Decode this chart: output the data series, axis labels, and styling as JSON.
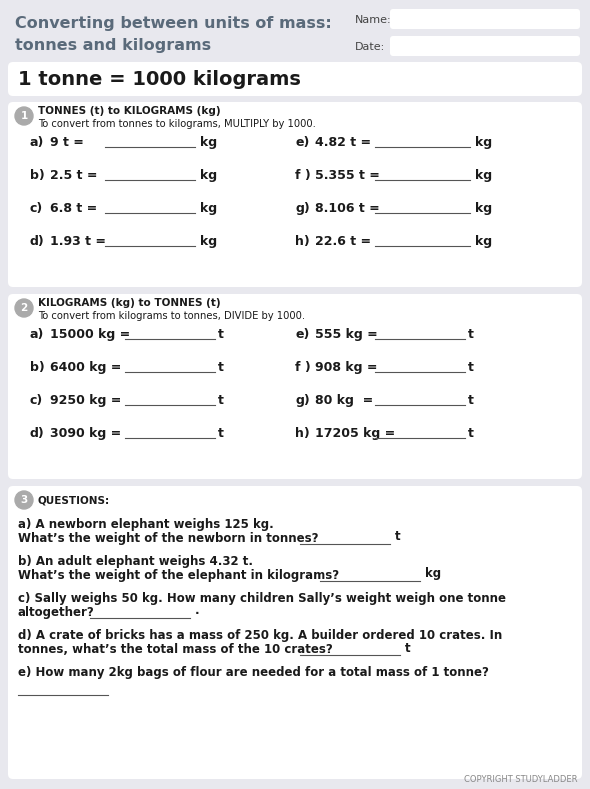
{
  "title_line1": "Converting between units of mass:",
  "title_line2": "tonnes and kilograms",
  "bg_color": "#e8e8ee",
  "card_color": "#ffffff",
  "title_color": "#5a6a7a",
  "text_color": "#1a1a1a",
  "section1_header": "TONNES (t) to KILOGRAMS (kg)",
  "section1_sub": "To convert from tonnes to kilograms, MULTIPLY by 1000.",
  "section1_left_labels": [
    "a)",
    "b)",
    "c)",
    "d)"
  ],
  "section1_left_vals": [
    "9 t =",
    "2.5 t =",
    "6.8 t =",
    "1.93 t ="
  ],
  "section1_left_unit": "kg",
  "section1_right_labels": [
    "e)",
    "f )",
    "g)",
    "h)"
  ],
  "section1_right_vals": [
    "4.82 t =",
    "5.355 t =",
    "8.106 t =",
    "22.6 t ="
  ],
  "section1_right_unit": "kg",
  "section2_header": "KILOGRAMS (kg) to TONNES (t)",
  "section2_sub": "To convert from kilograms to tonnes, DIVIDE by 1000.",
  "section2_left_labels": [
    "a)",
    "b)",
    "c)",
    "d)"
  ],
  "section2_left_vals": [
    "15000 kg =",
    "6400 kg =",
    "9250 kg =",
    "3090 kg ="
  ],
  "section2_left_unit": "t",
  "section2_right_labels": [
    "e)",
    "f )",
    "g)",
    "h)"
  ],
  "section2_right_vals": [
    "555 kg =",
    "908 kg =",
    "80 kg  =",
    "17205 kg ="
  ],
  "section2_right_unit": "t",
  "section3_header": "QUESTIONS:",
  "q_a_line1": "a) A newborn elephant weighs 125 kg.",
  "q_a_line2": "What’s the weight of the newborn in tonnes?",
  "q_a_unit": "t",
  "q_b_line1": "b) An adult elephant weighs 4.32 t.",
  "q_b_line2": "What’s the weight of the elephant in kilograms?",
  "q_b_unit": "kg",
  "q_c_line1": "c) Sally weighs 50 kg. How many children Sally’s weight weigh one tonne",
  "q_c_line2": "altogether?",
  "q_c_unit": ".",
  "q_d_line1": "d) A crate of bricks has a mass of 250 kg. A builder ordered 10 crates. In",
  "q_d_line2": "tonnes, what’s the total mass of the 10 crates?",
  "q_d_unit": "t",
  "q_e_line1": "e) How many 2kg bags of flour are needed for a total mass of 1 tonne?",
  "formula": "1 tonne = 1000 kilograms",
  "footer": "COPYRIGHT STUDYLADDER",
  "name_label": "Name:",
  "date_label": "Date:"
}
